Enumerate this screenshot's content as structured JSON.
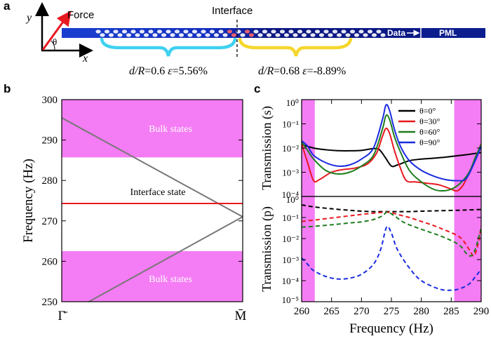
{
  "panel_labels": {
    "a": "a",
    "b": "b",
    "c": "c"
  },
  "panel_a": {
    "axis_y": "y",
    "axis_x": "x",
    "angle_symbol": "θ",
    "force_label": "Force",
    "interface_label": "Interface",
    "data_label": "Data",
    "pml_label": "PML",
    "left_region": {
      "dR_text": "d/R",
      "dR_value": "=0.6",
      "eps_symbol": "ε",
      "eps_value": "=5.56%"
    },
    "right_region": {
      "dR_text": "d/R",
      "dR_value": "=0.68",
      "eps_symbol": "ε",
      "eps_value": "=-8.89%"
    },
    "colors": {
      "strip": "#0d1f9a",
      "force_arrow": "#e8191f",
      "left_brace": "#3fd0f0",
      "right_brace": "#f5d72a"
    }
  },
  "chart_data": [
    {
      "type": "line",
      "ylabel": "Frequency (Hz)",
      "ylim": [
        250,
        300
      ],
      "yticks": [
        250,
        260,
        270,
        280,
        290,
        300
      ],
      "xtick_labels": [
        "Γ̄",
        "M̄"
      ],
      "bulk_bands": [
        [
          285.7,
          300
        ],
        [
          250,
          262.5
        ]
      ],
      "bulk_label": "Bulk states",
      "band_lines": [
        {
          "name": "",
          "x": [
            0,
            1
          ],
          "y": [
            295.5,
            271.0
          ],
          "color": "#777777"
        },
        {
          "name": "",
          "x": [
            0.15,
            1
          ],
          "y": [
            250,
            271.0
          ],
          "color": "#777777"
        }
      ],
      "interface_state": {
        "label": "Interface state",
        "frequency": 274.3,
        "color": "#e8191f"
      },
      "colors": {
        "bulk_fill": "#f47cf4"
      }
    },
    {
      "type": "line",
      "ylabel": "Transmission (s)",
      "y_scale": "log",
      "ylim": [
        0.0001,
        1
      ],
      "ytick_labels": [
        "10⁻⁴",
        "10⁻³",
        "10⁻²",
        "10⁻¹",
        "10⁰"
      ],
      "xlim": [
        260,
        290
      ],
      "shaded_x": [
        [
          260,
          262.2
        ],
        [
          285.5,
          290
        ]
      ],
      "legend_position": "top-right",
      "series": [
        {
          "name": "θ=0°",
          "color": "#000000",
          "x": [
            260,
            262,
            264,
            266,
            268,
            270,
            272,
            273,
            274,
            275,
            276,
            278,
            280,
            282,
            284,
            286,
            288,
            290
          ],
          "y": [
            0.014,
            0.01,
            0.0085,
            0.0078,
            0.0077,
            0.008,
            0.0095,
            0.0085,
            0.004,
            0.0018,
            0.002,
            0.003,
            0.0035,
            0.0038,
            0.0042,
            0.0048,
            0.0055,
            0.0065
          ]
        },
        {
          "name": "θ=30°",
          "color": "#e8191f",
          "x": [
            260,
            261,
            262,
            263,
            265,
            267,
            269,
            271,
            272.5,
            273.5,
            274.1,
            274.7,
            275.5,
            276.5,
            277.5,
            279,
            281,
            283,
            285,
            286,
            287,
            288,
            289,
            290
          ],
          "y": [
            0.015,
            0.0025,
            0.00045,
            0.0005,
            0.001,
            0.0013,
            0.0015,
            0.0022,
            0.006,
            0.03,
            0.065,
            0.04,
            0.008,
            0.0015,
            0.00045,
            0.0004,
            0.00035,
            0.0003,
            0.0002,
            0.00017,
            0.0003,
            0.001,
            0.0035,
            0.015
          ]
        },
        {
          "name": "θ=60°",
          "color": "#1e7d1e",
          "x": [
            260,
            261,
            262,
            264,
            266,
            268,
            270,
            272,
            273.5,
            274.1,
            274.7,
            275.5,
            276.5,
            278,
            280,
            282,
            283.5,
            285,
            286.5,
            288,
            289,
            290
          ],
          "y": [
            0.018,
            0.008,
            0.0035,
            0.0012,
            0.00085,
            0.001,
            0.0018,
            0.005,
            0.06,
            0.22,
            0.15,
            0.03,
            0.007,
            0.0012,
            0.0004,
            0.0002,
            0.00017,
            0.0002,
            0.00035,
            0.001,
            0.004,
            0.014
          ]
        },
        {
          "name": "θ=90°",
          "color": "#1a2be0",
          "x": [
            260,
            261,
            262,
            264,
            266,
            268,
            270,
            272,
            273.5,
            274.1,
            274.7,
            275.5,
            276.5,
            278,
            280,
            282,
            284,
            286,
            287.5,
            289,
            290
          ],
          "y": [
            0.02,
            0.012,
            0.005,
            0.0025,
            0.0018,
            0.002,
            0.0035,
            0.01,
            0.15,
            0.6,
            0.35,
            0.06,
            0.012,
            0.003,
            0.0012,
            0.0007,
            0.0005,
            0.00045,
            0.00055,
            0.003,
            0.012
          ]
        }
      ]
    },
    {
      "type": "line",
      "xlabel": "Frequency (Hz)",
      "ylabel": "Transmission (p)",
      "y_scale": "log",
      "ylim": [
        1e-05,
        1
      ],
      "ytick_labels": [
        "10⁻⁵",
        "10⁻⁴",
        "10⁻³",
        "10⁻²",
        "10⁻¹",
        "10⁰"
      ],
      "xlim": [
        260,
        290
      ],
      "xticks": [
        260,
        265,
        270,
        275,
        280,
        285,
        290
      ],
      "line_style": "dashed",
      "shaded_x": [
        [
          260,
          262.2
        ],
        [
          285.5,
          290
        ]
      ],
      "series": [
        {
          "name": "θ=0°",
          "color": "#000000",
          "x": [
            260,
            262,
            265,
            268,
            270,
            272,
            274,
            276,
            278,
            280,
            283,
            286,
            288,
            290
          ],
          "y": [
            0.4,
            0.32,
            0.26,
            0.22,
            0.2,
            0.19,
            0.19,
            0.19,
            0.19,
            0.2,
            0.21,
            0.22,
            0.23,
            0.24
          ]
        },
        {
          "name": "θ=30°",
          "color": "#e8191f",
          "x": [
            260,
            262,
            265,
            268,
            270,
            272,
            274,
            275,
            276,
            278,
            280,
            282,
            284,
            286,
            287,
            288,
            288.8,
            289.5,
            290
          ],
          "y": [
            0.065,
            0.075,
            0.095,
            0.12,
            0.14,
            0.16,
            0.18,
            0.17,
            0.14,
            0.1,
            0.065,
            0.042,
            0.025,
            0.014,
            0.008,
            0.003,
            0.0015,
            0.006,
            0.04
          ]
        },
        {
          "name": "θ=60°",
          "color": "#1e7d1e",
          "x": [
            260,
            262,
            265,
            268,
            270,
            272,
            273.5,
            274.3,
            275.5,
            277,
            279,
            281,
            283,
            285,
            286.5,
            287.5,
            288.3,
            289,
            289.6,
            290
          ],
          "y": [
            0.035,
            0.038,
            0.045,
            0.055,
            0.062,
            0.08,
            0.12,
            0.18,
            0.12,
            0.06,
            0.035,
            0.022,
            0.014,
            0.008,
            0.0045,
            0.002,
            0.0015,
            0.003,
            0.012,
            0.03
          ]
        },
        {
          "name": "θ=90°",
          "color": "#1a2be0",
          "x": [
            260,
            261,
            262,
            264,
            266,
            268,
            270,
            272,
            273.2,
            274.2,
            275,
            276,
            278,
            280,
            283,
            285,
            286.5,
            288,
            289,
            290
          ],
          "y": [
            0.0012,
            0.0006,
            0.0003,
            0.00016,
            0.00012,
            0.00013,
            0.0002,
            0.0006,
            0.003,
            0.035,
            0.018,
            0.003,
            0.0004,
            0.0001,
            4e-05,
            3.5e-05,
            4.2e-05,
            7e-05,
            0.00015,
            0.00035
          ]
        }
      ]
    }
  ]
}
